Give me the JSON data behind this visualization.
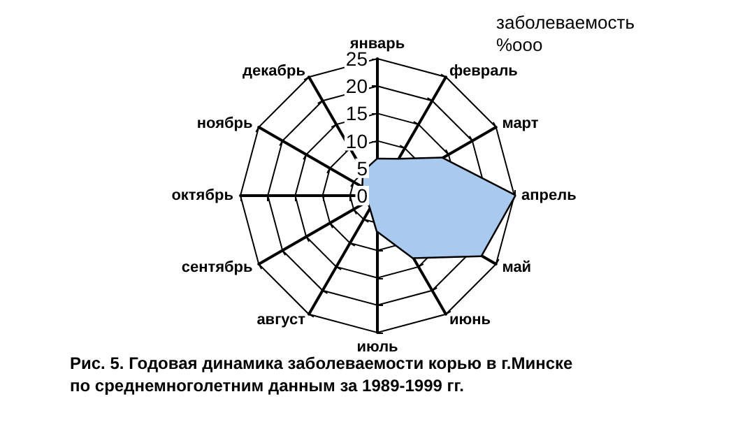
{
  "chart_data": {
    "type": "radar",
    "ylabel": "заболеваемость\n%ooo",
    "categories": [
      "январь",
      "февраль",
      "март",
      "апрель",
      "май",
      "июнь",
      "июль",
      "август",
      "сентябрь",
      "октябрь",
      "ноябрь",
      "декабрь"
    ],
    "series": [
      {
        "color": "#a9c9ef",
        "values": [
          6.6,
          7.6,
          13.6,
          25,
          21.8,
          13,
          6.4,
          2.5,
          2,
          2.8,
          3,
          5
        ]
      }
    ],
    "ylim": [
      0,
      25
    ],
    "yticks": [
      0,
      5,
      10,
      15,
      20,
      25
    ],
    "annotations": [
      "Рис. 5. Годовая динамика заболеваемости корью в г.Минске\nпо среднемноголетним данным за 1989-1999 гг."
    ]
  }
}
